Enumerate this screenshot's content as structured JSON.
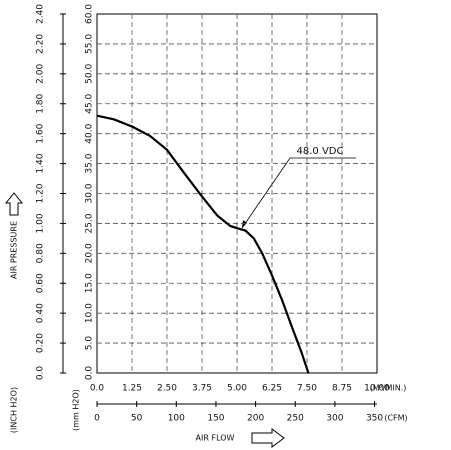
{
  "chart_data": {
    "type": "line",
    "x_label": "AIR FLOW",
    "y_label": "AIR PRESSURE",
    "x_unit": "(M³/MIN.)",
    "x2_unit": "(CFM)",
    "y_unit": "(mm H2O)",
    "y2_unit": "(INCH H2O)",
    "xlim": [
      0,
      10
    ],
    "xticks": [
      {
        "value": 0,
        "label": "0.0"
      },
      1.25,
      {
        "value": 2.5,
        "label": "2.50"
      },
      3.75,
      {
        "value": 5,
        "label": "5.00"
      },
      6.25,
      {
        "value": 7.5,
        "label": "7.50"
      },
      8.75,
      {
        "value": 10,
        "label": "10.00"
      }
    ],
    "x2lim": [
      0,
      353.1
    ],
    "x2ticks": [
      0,
      50,
      100,
      150,
      200,
      250,
      300,
      350
    ],
    "ylim": [
      0,
      60
    ],
    "yticks": [
      {
        "value": 0,
        "label": "0.0"
      },
      {
        "value": 5,
        "label": "5.0"
      },
      {
        "value": 10,
        "label": "10.0"
      },
      {
        "value": 15,
        "label": "15.0"
      },
      {
        "value": 20,
        "label": "20.0"
      },
      {
        "value": 25,
        "label": "25.0"
      },
      {
        "value": 30,
        "label": "30.0"
      },
      {
        "value": 35,
        "label": "35.0"
      },
      {
        "value": 40,
        "label": "40.0"
      },
      {
        "value": 45,
        "label": "45.0"
      },
      {
        "value": 50,
        "label": "50.0"
      },
      {
        "value": 55,
        "label": "55.0"
      },
      {
        "value": 60,
        "label": "60.0"
      }
    ],
    "y2lim": [
      0,
      2.4
    ],
    "y2ticks": [
      {
        "value": 0,
        "label": "0.0"
      },
      {
        "value": 0.2,
        "label": "0.20"
      },
      {
        "value": 0.4,
        "label": "0.40"
      },
      {
        "value": 0.6,
        "label": "0.60"
      },
      {
        "value": 0.8,
        "label": "0.80"
      },
      {
        "value": 1,
        "label": "1.00"
      },
      {
        "value": 1.2,
        "label": "1.20"
      },
      {
        "value": 1.4,
        "label": "1.40"
      },
      {
        "value": 1.6,
        "label": "1.60"
      },
      {
        "value": 1.8,
        "label": "1.80"
      },
      {
        "value": 2,
        "label": "2.00"
      },
      {
        "value": 2.2,
        "label": "2.20"
      },
      {
        "value": 2.4,
        "label": "2.40"
      }
    ],
    "grid": true,
    "series": [
      {
        "name": "48.0 VDC",
        "color": "#000000",
        "x": [
          0,
          0.6,
          1.25,
          1.9,
          2.5,
          3.1,
          3.75,
          4.3,
          4.75,
          5.0,
          5.3,
          5.6,
          5.9,
          6.25,
          6.6,
          7.0,
          7.3,
          7.55
        ],
        "values": [
          43,
          42.4,
          41.2,
          39.6,
          37.3,
          33.5,
          29.5,
          26.3,
          24.6,
          24.2,
          23.8,
          22.5,
          20.0,
          16.3,
          12.3,
          7.2,
          3.5,
          0
        ]
      }
    ]
  }
}
